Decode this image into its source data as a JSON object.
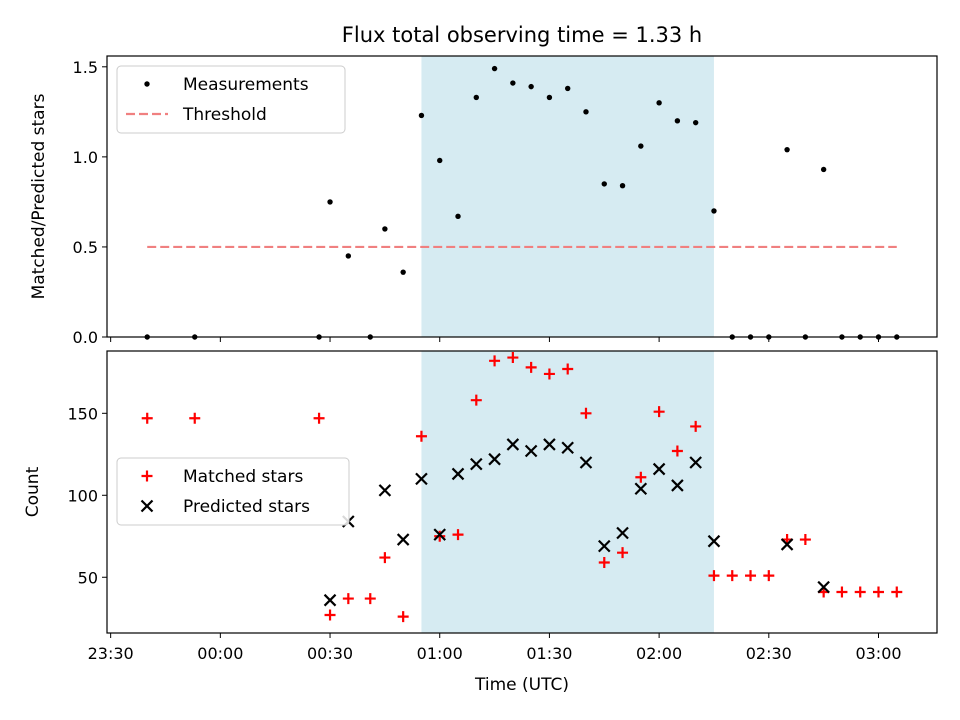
{
  "chart_data": {
    "type": "scatter",
    "title": "Flux total observing time = 1.33 h",
    "xlabel": "Time (UTC)",
    "x_ticks": [
      "23:30",
      "00:00",
      "00:30",
      "01:00",
      "01:30",
      "02:00",
      "02:30",
      "03:00"
    ],
    "xlim": [
      "23:29",
      "03:16"
    ],
    "highlight_span": {
      "start": "00:55",
      "end": "02:15",
      "color": "#add8e6"
    },
    "colors": {
      "measurements": "#000000",
      "threshold": "#f08080",
      "matched": "#ff0000",
      "predicted": "#000000",
      "span": "#add8e6"
    },
    "panels": [
      {
        "ylabel": "Matched/Predicted stars",
        "ylim": [
          0,
          1.56
        ],
        "y_ticks": [
          "0.0",
          "0.5",
          "1.0",
          "1.5"
        ],
        "legend": {
          "placement": "upper-left",
          "entries": [
            "Measurements",
            "Threshold"
          ]
        },
        "series": [
          {
            "name": "Measurements",
            "marker": "dot",
            "points": [
              [
                "23:40",
                0
              ],
              [
                "23:53",
                0
              ],
              [
                "00:27",
                0
              ],
              [
                "00:30",
                0.75
              ],
              [
                "00:35",
                0.45
              ],
              [
                "00:41",
                0
              ],
              [
                "00:45",
                0.6
              ],
              [
                "00:50",
                0.36
              ],
              [
                "00:55",
                1.23
              ],
              [
                "01:00",
                0.98
              ],
              [
                "01:05",
                0.67
              ],
              [
                "01:10",
                1.33
              ],
              [
                "01:15",
                1.49
              ],
              [
                "01:20",
                1.41
              ],
              [
                "01:25",
                1.39
              ],
              [
                "01:30",
                1.33
              ],
              [
                "01:35",
                1.38
              ],
              [
                "01:40",
                1.25
              ],
              [
                "01:45",
                0.85
              ],
              [
                "01:50",
                0.84
              ],
              [
                "01:55",
                1.06
              ],
              [
                "02:00",
                1.3
              ],
              [
                "02:05",
                1.2
              ],
              [
                "02:10",
                1.19
              ],
              [
                "02:15",
                0.7
              ],
              [
                "02:20",
                0
              ],
              [
                "02:25",
                0
              ],
              [
                "02:30",
                0
              ],
              [
                "02:35",
                1.04
              ],
              [
                "02:40",
                0
              ],
              [
                "02:45",
                0.93
              ],
              [
                "02:50",
                0
              ],
              [
                "02:55",
                0
              ],
              [
                "03:00",
                0
              ],
              [
                "03:05",
                0
              ]
            ]
          },
          {
            "name": "Threshold",
            "marker": "dashed-line",
            "points": [
              [
                "23:40",
                0.5
              ],
              [
                "03:05",
                0.5
              ]
            ]
          }
        ]
      },
      {
        "ylabel": "Count",
        "ylim": [
          16,
          188
        ],
        "y_ticks": [
          "50",
          "100",
          "150"
        ],
        "legend": {
          "placement": "center-left",
          "entries": [
            "Matched stars",
            "Predicted stars"
          ]
        },
        "series": [
          {
            "name": "Matched stars",
            "marker": "plus",
            "points": [
              [
                "23:40",
                147
              ],
              [
                "23:53",
                147
              ],
              [
                "00:27",
                147
              ],
              [
                "00:30",
                27
              ],
              [
                "00:35",
                37
              ],
              [
                "00:41",
                37
              ],
              [
                "00:45",
                62
              ],
              [
                "00:50",
                26
              ],
              [
                "00:55",
                136
              ],
              [
                "01:00",
                75
              ],
              [
                "01:05",
                76
              ],
              [
                "01:10",
                158
              ],
              [
                "01:15",
                182
              ],
              [
                "01:20",
                184
              ],
              [
                "01:25",
                178
              ],
              [
                "01:30",
                174
              ],
              [
                "01:35",
                177
              ],
              [
                "01:40",
                150
              ],
              [
                "01:45",
                59
              ],
              [
                "01:50",
                65
              ],
              [
                "01:55",
                111
              ],
              [
                "02:00",
                151
              ],
              [
                "02:05",
                127
              ],
              [
                "02:10",
                142
              ],
              [
                "02:15",
                51
              ],
              [
                "02:20",
                51
              ],
              [
                "02:25",
                51
              ],
              [
                "02:30",
                51
              ],
              [
                "02:35",
                73
              ],
              [
                "02:40",
                73
              ],
              [
                "02:45",
                41
              ],
              [
                "02:50",
                41
              ],
              [
                "02:55",
                41
              ],
              [
                "03:00",
                41
              ],
              [
                "03:05",
                41
              ]
            ]
          },
          {
            "name": "Predicted stars",
            "marker": "x",
            "points": [
              [
                "00:30",
                36
              ],
              [
                "00:35",
                84
              ],
              [
                "00:45",
                103
              ],
              [
                "00:50",
                73
              ],
              [
                "00:55",
                110
              ],
              [
                "01:00",
                76
              ],
              [
                "01:05",
                113
              ],
              [
                "01:10",
                119
              ],
              [
                "01:15",
                122
              ],
              [
                "01:20",
                131
              ],
              [
                "01:25",
                127
              ],
              [
                "01:30",
                131
              ],
              [
                "01:35",
                129
              ],
              [
                "01:40",
                120
              ],
              [
                "01:45",
                69
              ],
              [
                "01:50",
                77
              ],
              [
                "01:55",
                104
              ],
              [
                "02:00",
                116
              ],
              [
                "02:05",
                106
              ],
              [
                "02:10",
                120
              ],
              [
                "02:15",
                72
              ],
              [
                "02:35",
                70
              ],
              [
                "02:45",
                44
              ]
            ]
          }
        ]
      }
    ]
  }
}
